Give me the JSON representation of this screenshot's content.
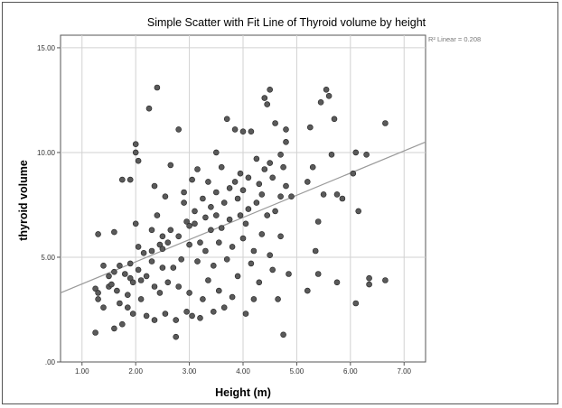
{
  "chart_data": {
    "type": "scatter",
    "title": "Simple Scatter with Fit Line of Thyroid volume by height",
    "xlabel": "Height (m)",
    "ylabel": "thyroid volume",
    "xlim": [
      0.6,
      7.4
    ],
    "ylim": [
      0,
      15.6
    ],
    "x_ticks": [
      "1.00",
      "2.00",
      "3.00",
      "4.00",
      "5.00",
      "6.00",
      "7.00"
    ],
    "y_ticks": [
      ".00",
      "5.00",
      "10.00",
      "15.00"
    ],
    "grid": true,
    "point_color": "#5a5a5a",
    "fit_line": {
      "label": "R² Linear = 0.208",
      "color": "#9a9a9a",
      "x": [
        0.6,
        7.4
      ],
      "y": [
        3.3,
        10.5
      ]
    },
    "points": [
      [
        1.3,
        6.1
      ],
      [
        1.25,
        3.5
      ],
      [
        1.3,
        3.3
      ],
      [
        1.3,
        3.0
      ],
      [
        1.25,
        1.4
      ],
      [
        1.4,
        4.6
      ],
      [
        1.4,
        2.6
      ],
      [
        1.5,
        3.6
      ],
      [
        1.5,
        4.1
      ],
      [
        1.55,
        3.7
      ],
      [
        1.6,
        6.2
      ],
      [
        1.6,
        4.3
      ],
      [
        1.6,
        1.6
      ],
      [
        1.65,
        3.4
      ],
      [
        1.7,
        4.6
      ],
      [
        1.7,
        2.8
      ],
      [
        1.75,
        1.8
      ],
      [
        1.75,
        8.7
      ],
      [
        1.8,
        4.2
      ],
      [
        1.85,
        3.2
      ],
      [
        1.85,
        2.6
      ],
      [
        1.9,
        8.7
      ],
      [
        1.9,
        4.7
      ],
      [
        1.9,
        4.0
      ],
      [
        1.95,
        3.8
      ],
      [
        1.95,
        2.3
      ],
      [
        2.0,
        6.6
      ],
      [
        2.0,
        10.0
      ],
      [
        2.0,
        10.4
      ],
      [
        2.05,
        9.6
      ],
      [
        2.05,
        5.5
      ],
      [
        2.05,
        4.4
      ],
      [
        2.1,
        3.9
      ],
      [
        2.1,
        3.0
      ],
      [
        2.15,
        5.2
      ],
      [
        2.2,
        4.1
      ],
      [
        2.2,
        2.2
      ],
      [
        2.25,
        12.1
      ],
      [
        2.3,
        6.3
      ],
      [
        2.3,
        5.3
      ],
      [
        2.3,
        4.8
      ],
      [
        2.35,
        8.4
      ],
      [
        2.35,
        3.6
      ],
      [
        2.35,
        2.0
      ],
      [
        2.4,
        13.1
      ],
      [
        2.4,
        7.0
      ],
      [
        2.45,
        5.6
      ],
      [
        2.45,
        3.3
      ],
      [
        2.5,
        6.0
      ],
      [
        2.5,
        5.4
      ],
      [
        2.5,
        4.5
      ],
      [
        2.55,
        7.9
      ],
      [
        2.55,
        2.3
      ],
      [
        2.6,
        5.7
      ],
      [
        2.6,
        3.8
      ],
      [
        2.65,
        6.3
      ],
      [
        2.65,
        9.4
      ],
      [
        2.7,
        4.5
      ],
      [
        2.75,
        2.0
      ],
      [
        2.75,
        1.2
      ],
      [
        2.8,
        11.1
      ],
      [
        2.8,
        6.0
      ],
      [
        2.8,
        3.6
      ],
      [
        2.85,
        4.9
      ],
      [
        2.9,
        8.1
      ],
      [
        2.9,
        7.6
      ],
      [
        2.95,
        6.7
      ],
      [
        2.95,
        2.4
      ],
      [
        3.0,
        6.5
      ],
      [
        3.0,
        5.6
      ],
      [
        3.0,
        3.3
      ],
      [
        3.05,
        8.7
      ],
      [
        3.05,
        2.2
      ],
      [
        3.1,
        7.2
      ],
      [
        3.1,
        6.6
      ],
      [
        3.15,
        9.2
      ],
      [
        3.15,
        4.8
      ],
      [
        3.2,
        5.7
      ],
      [
        3.2,
        2.1
      ],
      [
        3.25,
        7.8
      ],
      [
        3.25,
        3.0
      ],
      [
        3.3,
        6.9
      ],
      [
        3.3,
        5.3
      ],
      [
        3.35,
        8.6
      ],
      [
        3.35,
        3.9
      ],
      [
        3.4,
        7.4
      ],
      [
        3.4,
        6.3
      ],
      [
        3.45,
        4.6
      ],
      [
        3.45,
        2.4
      ],
      [
        3.5,
        10.0
      ],
      [
        3.5,
        8.1
      ],
      [
        3.5,
        7.0
      ],
      [
        3.55,
        5.7
      ],
      [
        3.55,
        3.4
      ],
      [
        3.6,
        9.3
      ],
      [
        3.6,
        6.4
      ],
      [
        3.65,
        7.6
      ],
      [
        3.65,
        2.6
      ],
      [
        3.7,
        11.6
      ],
      [
        3.7,
        4.9
      ],
      [
        3.75,
        8.3
      ],
      [
        3.75,
        6.8
      ],
      [
        3.8,
        5.5
      ],
      [
        3.8,
        3.1
      ],
      [
        3.85,
        11.1
      ],
      [
        3.85,
        8.6
      ],
      [
        3.9,
        7.8
      ],
      [
        3.9,
        4.1
      ],
      [
        3.95,
        9.0
      ],
      [
        3.95,
        7.0
      ],
      [
        4.0,
        11.0
      ],
      [
        4.0,
        8.2
      ],
      [
        4.0,
        5.9
      ],
      [
        4.05,
        6.6
      ],
      [
        4.05,
        2.3
      ],
      [
        4.1,
        8.8
      ],
      [
        4.1,
        7.3
      ],
      [
        4.15,
        11.0
      ],
      [
        4.15,
        4.7
      ],
      [
        4.2,
        5.3
      ],
      [
        4.2,
        3.0
      ],
      [
        4.25,
        9.7
      ],
      [
        4.25,
        7.6
      ],
      [
        4.3,
        8.5
      ],
      [
        4.3,
        3.8
      ],
      [
        4.35,
        8.0
      ],
      [
        4.35,
        6.1
      ],
      [
        4.4,
        12.6
      ],
      [
        4.4,
        9.2
      ],
      [
        4.45,
        12.3
      ],
      [
        4.45,
        7.0
      ],
      [
        4.5,
        13.0
      ],
      [
        4.5,
        9.5
      ],
      [
        4.5,
        5.1
      ],
      [
        4.55,
        8.8
      ],
      [
        4.55,
        4.4
      ],
      [
        4.6,
        11.4
      ],
      [
        4.6,
        7.2
      ],
      [
        4.65,
        3.0
      ],
      [
        4.7,
        9.9
      ],
      [
        4.7,
        7.9
      ],
      [
        4.7,
        6.0
      ],
      [
        4.75,
        9.3
      ],
      [
        4.75,
        1.3
      ],
      [
        4.8,
        11.1
      ],
      [
        4.8,
        10.5
      ],
      [
        4.8,
        8.4
      ],
      [
        4.85,
        4.2
      ],
      [
        4.9,
        7.9
      ],
      [
        5.2,
        8.6
      ],
      [
        5.2,
        3.4
      ],
      [
        5.25,
        11.2
      ],
      [
        5.3,
        9.3
      ],
      [
        5.35,
        5.3
      ],
      [
        5.4,
        6.7
      ],
      [
        5.4,
        4.2
      ],
      [
        5.45,
        12.4
      ],
      [
        5.5,
        8.0
      ],
      [
        5.55,
        13.0
      ],
      [
        5.6,
        12.7
      ],
      [
        5.65,
        9.9
      ],
      [
        5.7,
        11.6
      ],
      [
        5.75,
        8.0
      ],
      [
        5.75,
        3.8
      ],
      [
        5.85,
        7.8
      ],
      [
        6.05,
        9.0
      ],
      [
        6.1,
        10.0
      ],
      [
        6.1,
        2.8
      ],
      [
        6.15,
        7.2
      ],
      [
        6.3,
        9.9
      ],
      [
        6.35,
        4.0
      ],
      [
        6.35,
        3.7
      ],
      [
        6.65,
        11.4
      ],
      [
        6.65,
        3.9
      ]
    ]
  }
}
